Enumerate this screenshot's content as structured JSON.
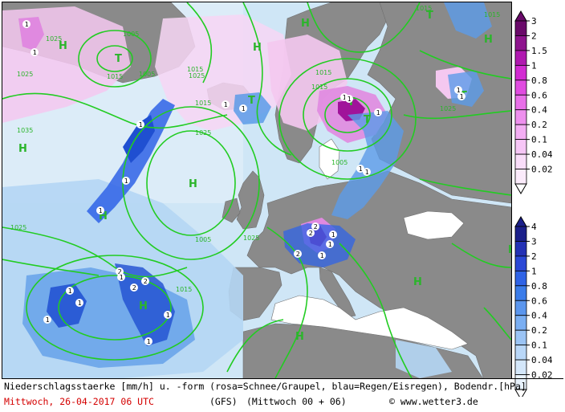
{
  "map": {
    "pressure_labels": [
      "1025",
      "1005",
      "1015",
      "1025",
      "1015",
      "1005",
      "1025",
      "1015",
      "1035",
      "1015",
      "1025",
      "1005",
      "1025",
      "1005",
      "1025",
      "1015",
      "1015",
      "1015",
      "1015",
      "1025"
    ],
    "pressure_centers": [
      "H",
      "T",
      "H",
      "H",
      "T",
      "H",
      "H",
      "T",
      "T",
      "T",
      "H",
      "T",
      "H",
      "H",
      "H",
      "H",
      "H"
    ],
    "precip_values": [
      "1",
      "1",
      "1",
      "1",
      "1",
      "1",
      "1",
      "1",
      "1",
      "1",
      "2",
      "2",
      "2",
      "1",
      "1",
      "1",
      "1",
      "1",
      "2",
      "1",
      "1",
      "1",
      "2",
      "2",
      "1",
      "1",
      "1",
      "1",
      "1"
    ],
    "colors": {
      "sea": "#cfe6f6",
      "land": "#888888",
      "isobar": "#22cc22",
      "rain_light": "#b4d6f4",
      "rain_mid": "#5b9be8",
      "rain_heavy": "#1f4fd1",
      "snow_light": "#f4c8f0",
      "snow_mid": "#e089e0",
      "snow_heavy": "#a0139a"
    }
  },
  "legend": {
    "snow": {
      "levels": [
        "3",
        "2",
        "1.5",
        "1",
        "0.8",
        "0.6",
        "0.4",
        "0.2",
        "0.1",
        "0.04",
        "0.02"
      ],
      "colors": [
        "#6a0a6a",
        "#8e148e",
        "#b019b0",
        "#d22cd2",
        "#e04ce0",
        "#e870e8",
        "#ee90ee",
        "#f3aef3",
        "#f6c6f6",
        "#f9ddf9",
        "#fbebfb"
      ]
    },
    "rain": {
      "levels": [
        "4",
        "3",
        "2",
        "1",
        "0.8",
        "0.6",
        "0.4",
        "0.2",
        "0.1",
        "0.04",
        "0.02"
      ],
      "colors": [
        "#1b1f8a",
        "#2431b5",
        "#2b48d6",
        "#2f63e6",
        "#3b7ce9",
        "#5b96ee",
        "#7aaef2",
        "#9bc4f5",
        "#b9d7f8",
        "#d4e7fa",
        "#e8f2fc"
      ]
    }
  },
  "caption": {
    "line1": "Niederschlagsstaerke [mm/h] u. -form (rosa=Schnee/Graupel, blau=Regen/Eisregen), Bodendr.[hPa]",
    "date": "Mittwoch, 26-04-2017  06 UTC",
    "model": "(GFS)",
    "run": "(Mittwoch 00 + 06)",
    "copyright": "© www.wetter3.de"
  }
}
